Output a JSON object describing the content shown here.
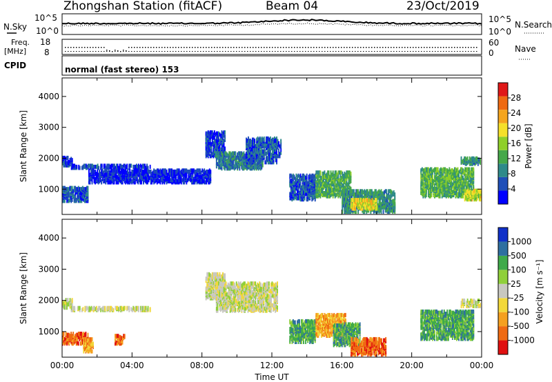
{
  "header": {
    "station": "Zhongshan Station (fitACF)",
    "beam": "Beam 04",
    "date": "23/Oct/2019"
  },
  "top_panels": {
    "nsky_label": "N.Sky",
    "nsearch_label": "N.Search",
    "noise_ticks_left": [
      "10^5",
      "10^0"
    ],
    "noise_ticks_right": [
      "10^5",
      "10^0"
    ],
    "freq_label_1": "Freq.",
    "freq_label_2": "[MHz]",
    "freq_ticks": [
      "18",
      "8"
    ],
    "nave_label": "Nave",
    "nave_ticks": [
      "60",
      "0"
    ],
    "cpid_label": "CPID",
    "cpid_text": "normal (fast stereo) 153"
  },
  "colors": {
    "power": [
      "#0000ff",
      "#1f4fb8",
      "#2f8a8a",
      "#46a84a",
      "#8fcf2a",
      "#f5e02a",
      "#f5a51e",
      "#ef6a12",
      "#e01818"
    ],
    "velocity": [
      "#e01010",
      "#ef6a12",
      "#f5a020",
      "#f2d83a",
      "#c8c8c0",
      "#8fcf3a",
      "#3faa4a",
      "#2e6fa0",
      "#1030c8"
    ]
  },
  "chart_data": [
    {
      "type": "heatmap",
      "name": "power",
      "ylabel": "Slant Range [km]",
      "xlabel": "",
      "xlim": [
        0,
        24
      ],
      "ylim": [
        180,
        4600
      ],
      "yticks": [
        "1000",
        "2000",
        "3000",
        "4000"
      ],
      "colorbar_label": "Power [dB]",
      "colorbar_ticks": [
        "4",
        "8",
        "12",
        "16",
        "20",
        "24",
        "28"
      ],
      "colorbar_range": [
        0,
        32
      ],
      "regions": [
        {
          "t0": 0.0,
          "t1": 0.6,
          "r0": 1700,
          "r1": 1950,
          "v": 5
        },
        {
          "t0": 0.5,
          "t1": 5.0,
          "r0": 1620,
          "r1": 1700,
          "v": 4
        },
        {
          "t0": 0.0,
          "t1": 1.5,
          "r0": 550,
          "r1": 1000,
          "v": 6
        },
        {
          "t0": 1.5,
          "t1": 8.5,
          "r0": 1150,
          "r1": 1550,
          "v": 3
        },
        {
          "t0": 8.2,
          "t1": 9.3,
          "r0": 2000,
          "r1": 2800,
          "v": 5
        },
        {
          "t0": 8.8,
          "t1": 11.5,
          "r0": 1600,
          "r1": 2100,
          "v": 8
        },
        {
          "t0": 10.5,
          "t1": 12.3,
          "r0": 1800,
          "r1": 2600,
          "v": 6
        },
        {
          "t0": 12.0,
          "t1": 12.5,
          "r0": 2000,
          "r1": 2500,
          "v": 6
        },
        {
          "t0": 13.0,
          "t1": 14.5,
          "r0": 600,
          "r1": 1400,
          "v": 6
        },
        {
          "t0": 14.5,
          "t1": 16.5,
          "r0": 700,
          "r1": 1500,
          "v": 12
        },
        {
          "t0": 16.0,
          "t1": 19.0,
          "r0": 200,
          "r1": 900,
          "v": 10
        },
        {
          "t0": 16.5,
          "t1": 18.0,
          "r0": 300,
          "r1": 600,
          "v": 20
        },
        {
          "t0": 20.5,
          "t1": 23.5,
          "r0": 700,
          "r1": 1600,
          "v": 13
        },
        {
          "t0": 22.8,
          "t1": 23.9,
          "r0": 1750,
          "r1": 1950,
          "v": 10
        },
        {
          "t0": 23.0,
          "t1": 23.9,
          "r0": 600,
          "r1": 900,
          "v": 18
        }
      ]
    },
    {
      "type": "heatmap",
      "name": "velocity",
      "ylabel": "Slant Range [km]",
      "xlabel": "Time UT",
      "xlim": [
        0,
        24
      ],
      "ylim": [
        180,
        4600
      ],
      "yticks": [
        "1000",
        "2000",
        "3000",
        "4000"
      ],
      "xticks": [
        "00:00",
        "04:00",
        "08:00",
        "12:00",
        "16:00",
        "20:00",
        "00:00"
      ],
      "colorbar_label": "Velocity [m s⁻¹]",
      "colorbar_ticks": [
        "-1000",
        "-500",
        "-100",
        "-25",
        "25",
        "100",
        "500",
        "1000"
      ],
      "regions": [
        {
          "t0": 0.0,
          "t1": 0.6,
          "r0": 1700,
          "r1": 1950,
          "v": 4
        },
        {
          "t0": 0.5,
          "t1": 5.0,
          "r0": 1620,
          "r1": 1700,
          "v": 4
        },
        {
          "t0": 0.0,
          "t1": 1.5,
          "r0": 550,
          "r1": 900,
          "v": 1
        },
        {
          "t0": 1.2,
          "t1": 1.8,
          "r0": 300,
          "r1": 700,
          "v": 2
        },
        {
          "t0": 3.0,
          "t1": 3.6,
          "r0": 550,
          "r1": 800,
          "v": 1
        },
        {
          "t0": 8.2,
          "t1": 9.3,
          "r0": 2000,
          "r1": 2800,
          "v": 4
        },
        {
          "t0": 8.8,
          "t1": 12.3,
          "r0": 1600,
          "r1": 2500,
          "v": 4
        },
        {
          "t0": 13.0,
          "t1": 14.5,
          "r0": 600,
          "r1": 1300,
          "v": 6
        },
        {
          "t0": 14.5,
          "t1": 16.2,
          "r0": 800,
          "r1": 1500,
          "v": 2
        },
        {
          "t0": 15.5,
          "t1": 17.0,
          "r0": 500,
          "r1": 1200,
          "v": 6
        },
        {
          "t0": 16.5,
          "t1": 18.5,
          "r0": 200,
          "r1": 700,
          "v": 1
        },
        {
          "t0": 20.5,
          "t1": 23.5,
          "r0": 700,
          "r1": 1600,
          "v": 6
        },
        {
          "t0": 22.8,
          "t1": 23.9,
          "r0": 1750,
          "r1": 1950,
          "v": 4
        }
      ]
    }
  ]
}
